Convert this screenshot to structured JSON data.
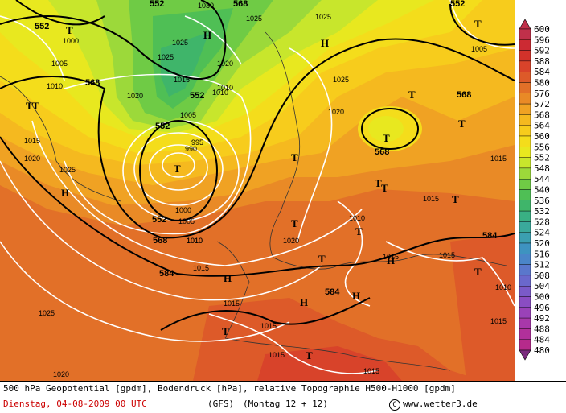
{
  "title_line": "500 hPa Geopotential [gpdm], Bodendruck [hPa], relative Topographie H500-H1000 [gpdm]",
  "date_line": "Dienstag, 04-08-2009  00 UTC",
  "model": "(GFS)",
  "run": "(Montag 12 + 12)",
  "site": "www.wetter3.de",
  "copyright_symbol": "C",
  "colors": {
    "footer_date": "#cc0000",
    "geopotential_lines": "#000000",
    "pressure_lines": "#ffffff"
  },
  "legend": {
    "labels": [
      "600",
      "596",
      "592",
      "588",
      "584",
      "580",
      "576",
      "572",
      "568",
      "564",
      "560",
      "556",
      "552",
      "548",
      "544",
      "540",
      "536",
      "532",
      "528",
      "524",
      "520",
      "516",
      "512",
      "508",
      "504",
      "500",
      "496",
      "492",
      "488",
      "484",
      "480"
    ],
    "colors": [
      "#c0304a",
      "#cc2a33",
      "#d2322a",
      "#d8432a",
      "#dd5a29",
      "#e27028",
      "#e98a26",
      "#f0a223",
      "#f5b91f",
      "#f7cc1c",
      "#f4dd1b",
      "#e8e81f",
      "#c8e62c",
      "#9cd93a",
      "#6fcb45",
      "#4fbf55",
      "#3fb56a",
      "#39b084",
      "#3aa99b",
      "#3b9fb0",
      "#3e93c0",
      "#4a85c8",
      "#5a77cc",
      "#6a68cc",
      "#7a5ac8",
      "#8a4dc2",
      "#9a42b8",
      "#a838aa",
      "#b1309b",
      "#b62a8b",
      "#7a2b7e"
    ]
  },
  "map": {
    "geopotential_labels": [
      "552",
      "552",
      "568",
      "552",
      "552",
      "552",
      "568",
      "568",
      "552",
      "568",
      "584",
      "568",
      "584",
      "584"
    ],
    "pressure_labels": [
      "1030",
      "1025",
      "1025",
      "1025",
      "1000",
      "1005",
      "1010",
      "1020",
      "1015",
      "1020",
      "1025",
      "1010",
      "1005",
      "995",
      "990",
      "1020",
      "1015",
      "1020",
      "1025",
      "1000",
      "1005",
      "1010",
      "1020",
      "1015",
      "1015",
      "1010",
      "1025",
      "1015",
      "1015",
      "1015",
      "1020",
      "1015",
      "1015",
      "1010",
      "1005",
      "1015",
      "1010",
      "1015",
      "1025",
      "1010",
      "1015"
    ],
    "highs": [
      "H",
      "H",
      "H",
      "H",
      "H",
      "H",
      "H"
    ],
    "troughs": [
      "T",
      "T",
      "T",
      "T",
      "T",
      "T",
      "T",
      "T",
      "T",
      "T",
      "T",
      "T",
      "T",
      "T",
      "T",
      "T",
      "T",
      "T"
    ]
  }
}
